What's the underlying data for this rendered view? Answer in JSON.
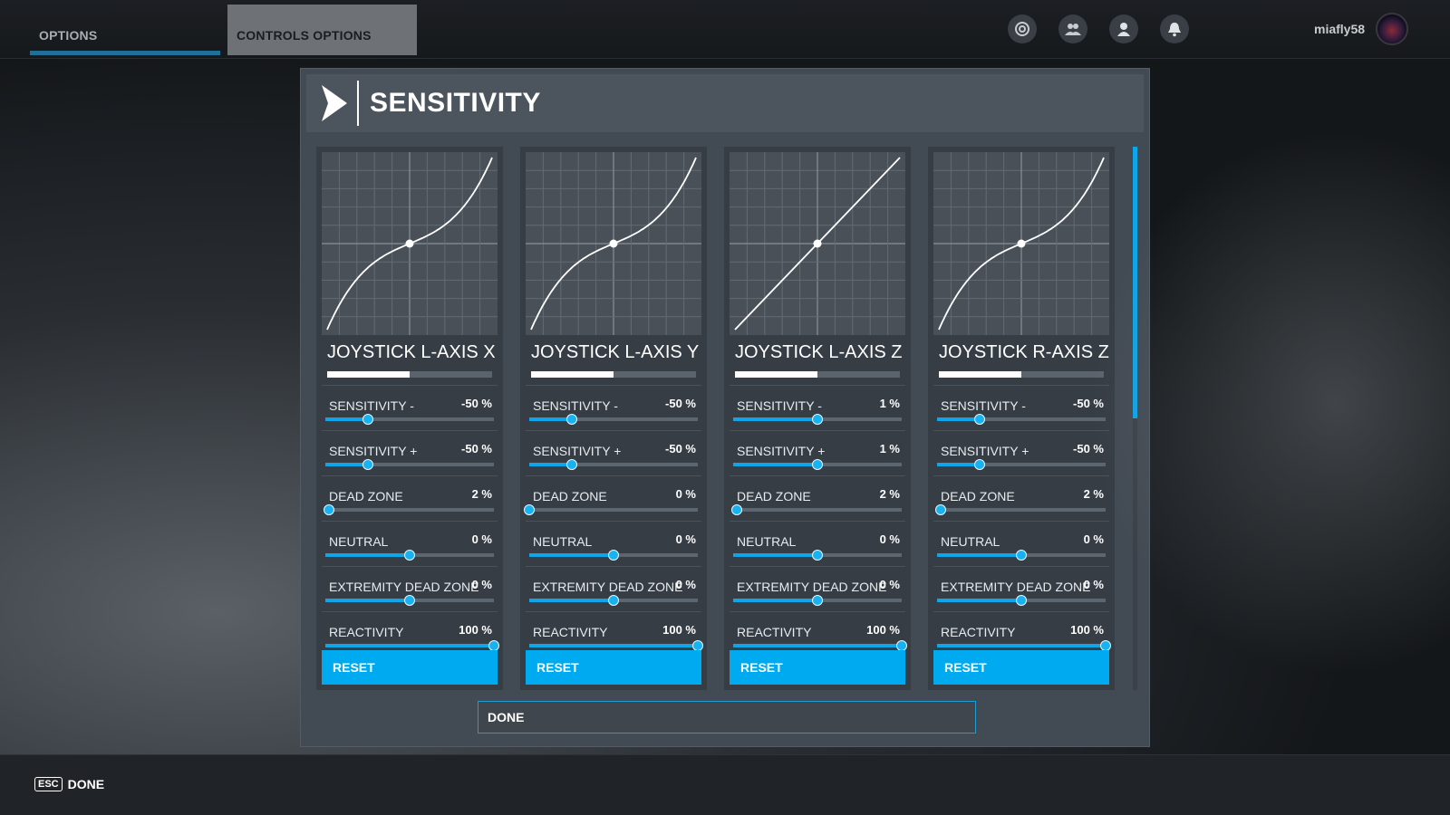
{
  "tabs": [
    {
      "label": "OPTIONS",
      "active": true
    },
    {
      "label": "CONTROLS OPTIONS",
      "active": false
    }
  ],
  "top_icons": [
    "target-icon",
    "friends-icon",
    "profile-icon",
    "notification-bell-icon"
  ],
  "user": {
    "name": "miafly58"
  },
  "panel": {
    "title": "SENSITIVITY",
    "done_label": "DONE"
  },
  "accent_color": "#00aaf0",
  "axes": [
    {
      "name": "JOYSTICK L-AXIS X",
      "curve": "s-curve",
      "progress": 0.5,
      "settings": [
        {
          "label": "SENSITIVITY -",
          "value": "-50 %",
          "level": 0.25
        },
        {
          "label": "SENSITIVITY +",
          "value": "-50 %",
          "level": 0.25
        },
        {
          "label": "DEAD ZONE",
          "value": "2 %",
          "level": 0.02
        },
        {
          "label": "NEUTRAL",
          "value": "0 %",
          "level": 0.5
        },
        {
          "label": "EXTREMITY DEAD ZONE",
          "value": "0 %",
          "level": 0.5
        },
        {
          "label": "REACTIVITY",
          "value": "100 %",
          "level": 1.0
        }
      ],
      "reset_label": "RESET"
    },
    {
      "name": "JOYSTICK L-AXIS Y",
      "curve": "s-curve",
      "progress": 0.5,
      "settings": [
        {
          "label": "SENSITIVITY -",
          "value": "-50 %",
          "level": 0.25
        },
        {
          "label": "SENSITIVITY +",
          "value": "-50 %",
          "level": 0.25
        },
        {
          "label": "DEAD ZONE",
          "value": "0 %",
          "level": 0.0
        },
        {
          "label": "NEUTRAL",
          "value": "0 %",
          "level": 0.5
        },
        {
          "label": "EXTREMITY DEAD ZONE",
          "value": "0 %",
          "level": 0.5
        },
        {
          "label": "REACTIVITY",
          "value": "100 %",
          "level": 1.0
        }
      ],
      "reset_label": "RESET"
    },
    {
      "name": "JOYSTICK L-AXIS Z",
      "curve": "linear",
      "progress": 0.5,
      "settings": [
        {
          "label": "SENSITIVITY -",
          "value": "1 %",
          "level": 0.5
        },
        {
          "label": "SENSITIVITY +",
          "value": "1 %",
          "level": 0.5
        },
        {
          "label": "DEAD ZONE",
          "value": "2 %",
          "level": 0.02
        },
        {
          "label": "NEUTRAL",
          "value": "0 %",
          "level": 0.5
        },
        {
          "label": "EXTREMITY DEAD ZONE",
          "value": "0 %",
          "level": 0.5
        },
        {
          "label": "REACTIVITY",
          "value": "100 %",
          "level": 1.0
        }
      ],
      "reset_label": "RESET"
    },
    {
      "name": "JOYSTICK R-AXIS Z",
      "curve": "s-curve",
      "progress": 0.5,
      "settings": [
        {
          "label": "SENSITIVITY -",
          "value": "-50 %",
          "level": 0.25
        },
        {
          "label": "SENSITIVITY +",
          "value": "-50 %",
          "level": 0.25
        },
        {
          "label": "DEAD ZONE",
          "value": "2 %",
          "level": 0.02
        },
        {
          "label": "NEUTRAL",
          "value": "0 %",
          "level": 0.5
        },
        {
          "label": "EXTREMITY DEAD ZONE",
          "value": "0 %",
          "level": 0.5
        },
        {
          "label": "REACTIVITY",
          "value": "100 %",
          "level": 1.0
        }
      ],
      "reset_label": "RESET"
    }
  ],
  "bottom": {
    "esc_key": "ESC",
    "done_label": "DONE"
  }
}
